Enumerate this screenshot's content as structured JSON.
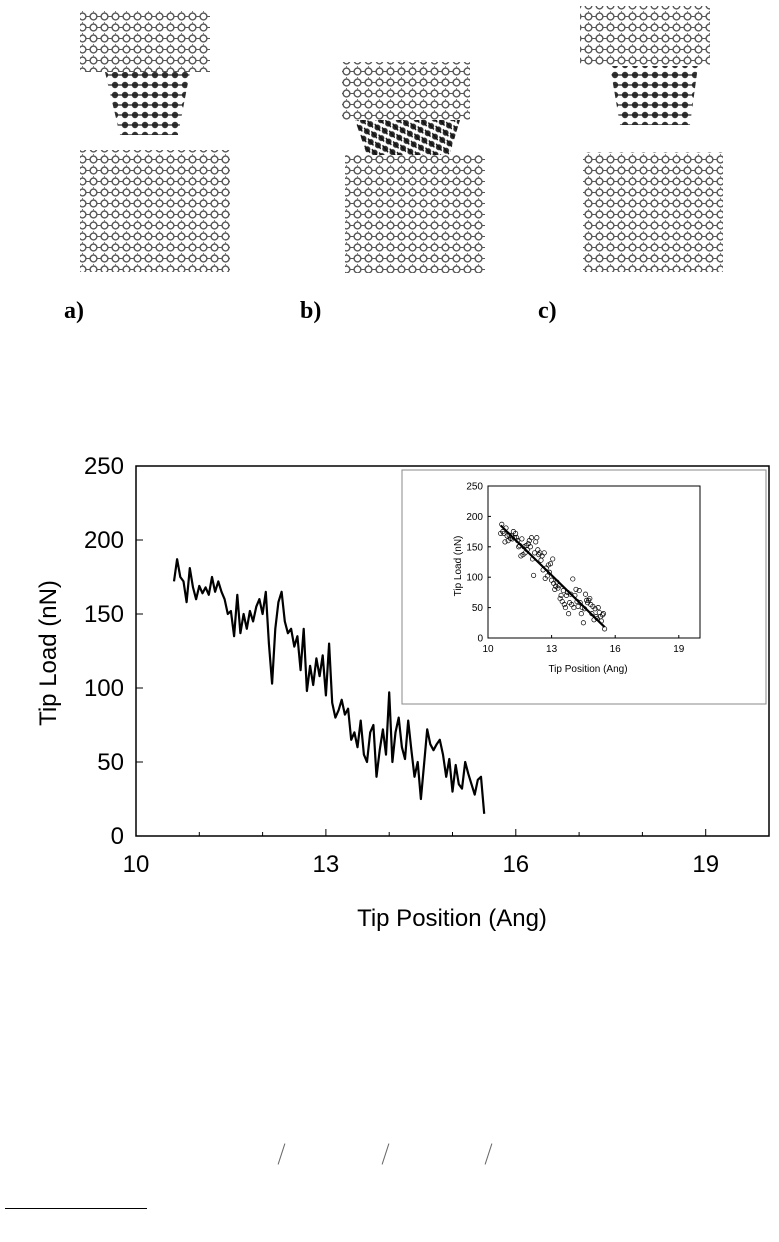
{
  "panels": {
    "labels": [
      "a)",
      "b)",
      "c)"
    ]
  },
  "chart_data": [
    {
      "type": "line",
      "title": "",
      "xlabel": "Tip Position (Ang)",
      "ylabel": "Tip Load (nN)",
      "xlim": [
        10,
        20
      ],
      "ylim": [
        0,
        250
      ],
      "xticks": [
        10,
        13,
        16,
        19
      ],
      "yticks": [
        0,
        50,
        100,
        150,
        200,
        250
      ],
      "grid": false,
      "legend": "none",
      "series": [
        {
          "x": [
            10.6,
            10.65,
            10.7,
            10.75,
            10.8,
            10.85,
            10.9,
            10.95,
            11.0,
            11.05,
            11.1,
            11.15,
            11.2,
            11.25,
            11.3,
            11.35,
            11.4,
            11.45,
            11.5,
            11.55,
            11.6,
            11.65,
            11.7,
            11.75,
            11.8,
            11.85,
            11.9,
            11.95,
            12.0,
            12.05,
            12.1,
            12.15,
            12.2,
            12.25,
            12.3,
            12.35,
            12.4,
            12.45,
            12.5,
            12.55,
            12.6,
            12.65,
            12.7,
            12.75,
            12.8,
            12.85,
            12.9,
            12.95,
            13.0,
            13.05,
            13.1,
            13.15,
            13.2,
            13.25,
            13.3,
            13.35,
            13.4,
            13.45,
            13.5,
            13.55,
            13.6,
            13.65,
            13.7,
            13.75,
            13.8,
            13.85,
            13.9,
            13.95,
            14.0,
            14.05,
            14.1,
            14.15,
            14.2,
            14.25,
            14.3,
            14.35,
            14.4,
            14.45,
            14.5,
            14.55,
            14.6,
            14.65,
            14.7,
            14.75,
            14.8,
            14.85,
            14.9,
            14.95,
            15.0,
            15.05,
            15.1,
            15.15,
            15.2,
            15.25,
            15.3,
            15.35,
            15.4,
            15.45,
            15.5
          ],
          "y": [
            172,
            187,
            175,
            172,
            158,
            181,
            168,
            160,
            169,
            164,
            168,
            163,
            175,
            165,
            172,
            165,
            160,
            150,
            152,
            135,
            163,
            137,
            150,
            140,
            152,
            145,
            155,
            160,
            150,
            165,
            130,
            103,
            140,
            158,
            165,
            145,
            137,
            140,
            128,
            135,
            112,
            140,
            98,
            115,
            102,
            120,
            108,
            122,
            95,
            130,
            90,
            80,
            85,
            92,
            82,
            86,
            65,
            70,
            60,
            78,
            55,
            50,
            70,
            75,
            40,
            58,
            72,
            55,
            97,
            50,
            70,
            80,
            60,
            52,
            78,
            58,
            40,
            50,
            25,
            48,
            72,
            62,
            58,
            62,
            65,
            55,
            40,
            52,
            30,
            48,
            35,
            32,
            50,
            42,
            35,
            28,
            38,
            40,
            15
          ]
        }
      ],
      "inset": {
        "type": "scatter",
        "xlabel": "Tip Position (Ang)",
        "ylabel": "Tip Load (nN)",
        "xlim": [
          10,
          20
        ],
        "ylim": [
          0,
          250
        ],
        "xticks": [
          10,
          13,
          16,
          19
        ],
        "yticks": [
          0,
          50,
          100,
          150,
          200,
          250
        ],
        "points": {
          "x": [
            10.6,
            10.65,
            10.7,
            10.75,
            10.8,
            10.85,
            10.9,
            10.95,
            11.0,
            11.05,
            11.1,
            11.15,
            11.2,
            11.25,
            11.3,
            11.35,
            11.4,
            11.45,
            11.5,
            11.55,
            11.6,
            11.65,
            11.7,
            11.75,
            11.8,
            11.85,
            11.9,
            11.95,
            12.0,
            12.05,
            12.1,
            12.15,
            12.2,
            12.25,
            12.3,
            12.35,
            12.4,
            12.45,
            12.5,
            12.55,
            12.6,
            12.65,
            12.7,
            12.75,
            12.8,
            12.85,
            12.9,
            12.95,
            13.0,
            13.05,
            13.1,
            13.15,
            13.2,
            13.25,
            13.3,
            13.35,
            13.4,
            13.45,
            13.5,
            13.55,
            13.6,
            13.65,
            13.7,
            13.75,
            13.8,
            13.85,
            13.9,
            13.95,
            14.0,
            14.05,
            14.1,
            14.15,
            14.2,
            14.25,
            14.3,
            14.35,
            14.4,
            14.45,
            14.5,
            14.55,
            14.6,
            14.65,
            14.7,
            14.75,
            14.8,
            14.85,
            14.9,
            14.95,
            15.0,
            15.05,
            15.1,
            15.15,
            15.2,
            15.25,
            15.3,
            15.35,
            15.4,
            15.45,
            15.5
          ],
          "y": [
            172,
            187,
            175,
            172,
            158,
            181,
            168,
            160,
            169,
            164,
            168,
            163,
            175,
            165,
            172,
            165,
            160,
            150,
            152,
            135,
            163,
            137,
            150,
            140,
            152,
            145,
            155,
            160,
            150,
            165,
            130,
            103,
            140,
            158,
            165,
            145,
            137,
            140,
            128,
            135,
            112,
            140,
            98,
            115,
            102,
            120,
            108,
            122,
            95,
            130,
            90,
            80,
            85,
            92,
            82,
            86,
            65,
            70,
            60,
            78,
            55,
            50,
            70,
            75,
            40,
            58,
            72,
            55,
            97,
            50,
            70,
            80,
            60,
            52,
            78,
            58,
            40,
            50,
            25,
            48,
            72,
            62,
            58,
            62,
            65,
            55,
            40,
            52,
            30,
            48,
            35,
            32,
            50,
            42,
            35,
            28,
            38,
            40,
            15
          ]
        },
        "fit": {
          "x": [
            10.6,
            15.5
          ],
          "y": [
            185,
            18
          ]
        }
      }
    }
  ]
}
